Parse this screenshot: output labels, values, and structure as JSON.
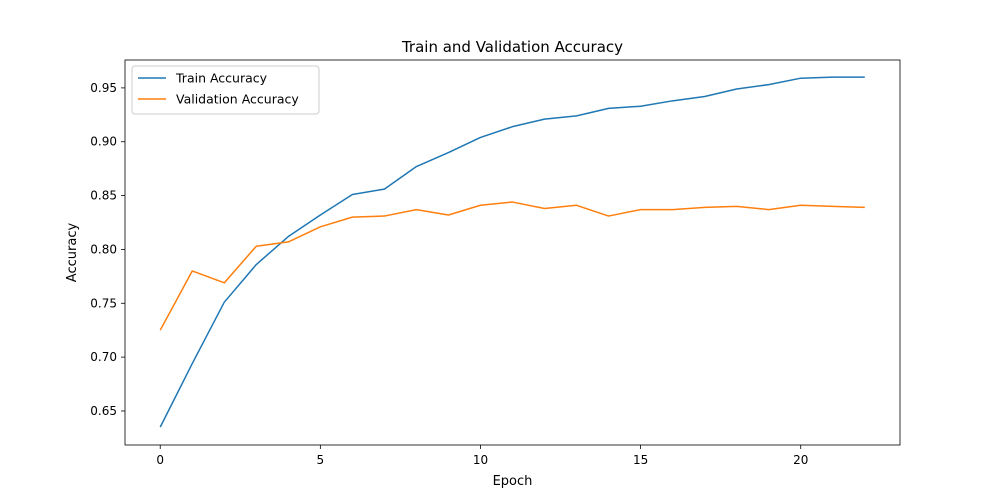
{
  "chart_data": {
    "type": "line",
    "title": "Train and Validation Accuracy",
    "xlabel": "Epoch",
    "ylabel": "Accuracy",
    "x": [
      0,
      1,
      2,
      3,
      4,
      5,
      6,
      7,
      8,
      9,
      10,
      11,
      12,
      13,
      14,
      15,
      16,
      17,
      18,
      19,
      20,
      21,
      22
    ],
    "xlim": [
      -1.1,
      23.1
    ],
    "ylim": [
      0.6184,
      0.9759
    ],
    "xticks": [
      0,
      5,
      10,
      15,
      20
    ],
    "yticks": [
      0.65,
      0.7,
      0.75,
      0.8,
      0.85,
      0.9,
      0.95
    ],
    "xtick_labels": [
      "0",
      "5",
      "10",
      "15",
      "20"
    ],
    "ytick_labels": [
      "0.65",
      "0.70",
      "0.75",
      "0.80",
      "0.85",
      "0.90",
      "0.95"
    ],
    "grid": false,
    "legend_position": "top-left",
    "series": [
      {
        "name": "Train Accuracy",
        "color": "#1f77b4",
        "values": [
          0.635,
          0.694,
          0.751,
          0.786,
          0.812,
          0.832,
          0.851,
          0.856,
          0.877,
          0.89,
          0.904,
          0.914,
          0.921,
          0.924,
          0.931,
          0.933,
          0.938,
          0.942,
          0.949,
          0.953,
          0.959,
          0.96,
          0.96
        ]
      },
      {
        "name": "Validation Accuracy",
        "color": "#ff7f0e",
        "values": [
          0.725,
          0.78,
          0.769,
          0.803,
          0.807,
          0.821,
          0.83,
          0.831,
          0.837,
          0.832,
          0.841,
          0.844,
          0.838,
          0.841,
          0.831,
          0.837,
          0.837,
          0.839,
          0.84,
          0.837,
          0.841,
          0.84,
          0.839
        ]
      }
    ]
  }
}
